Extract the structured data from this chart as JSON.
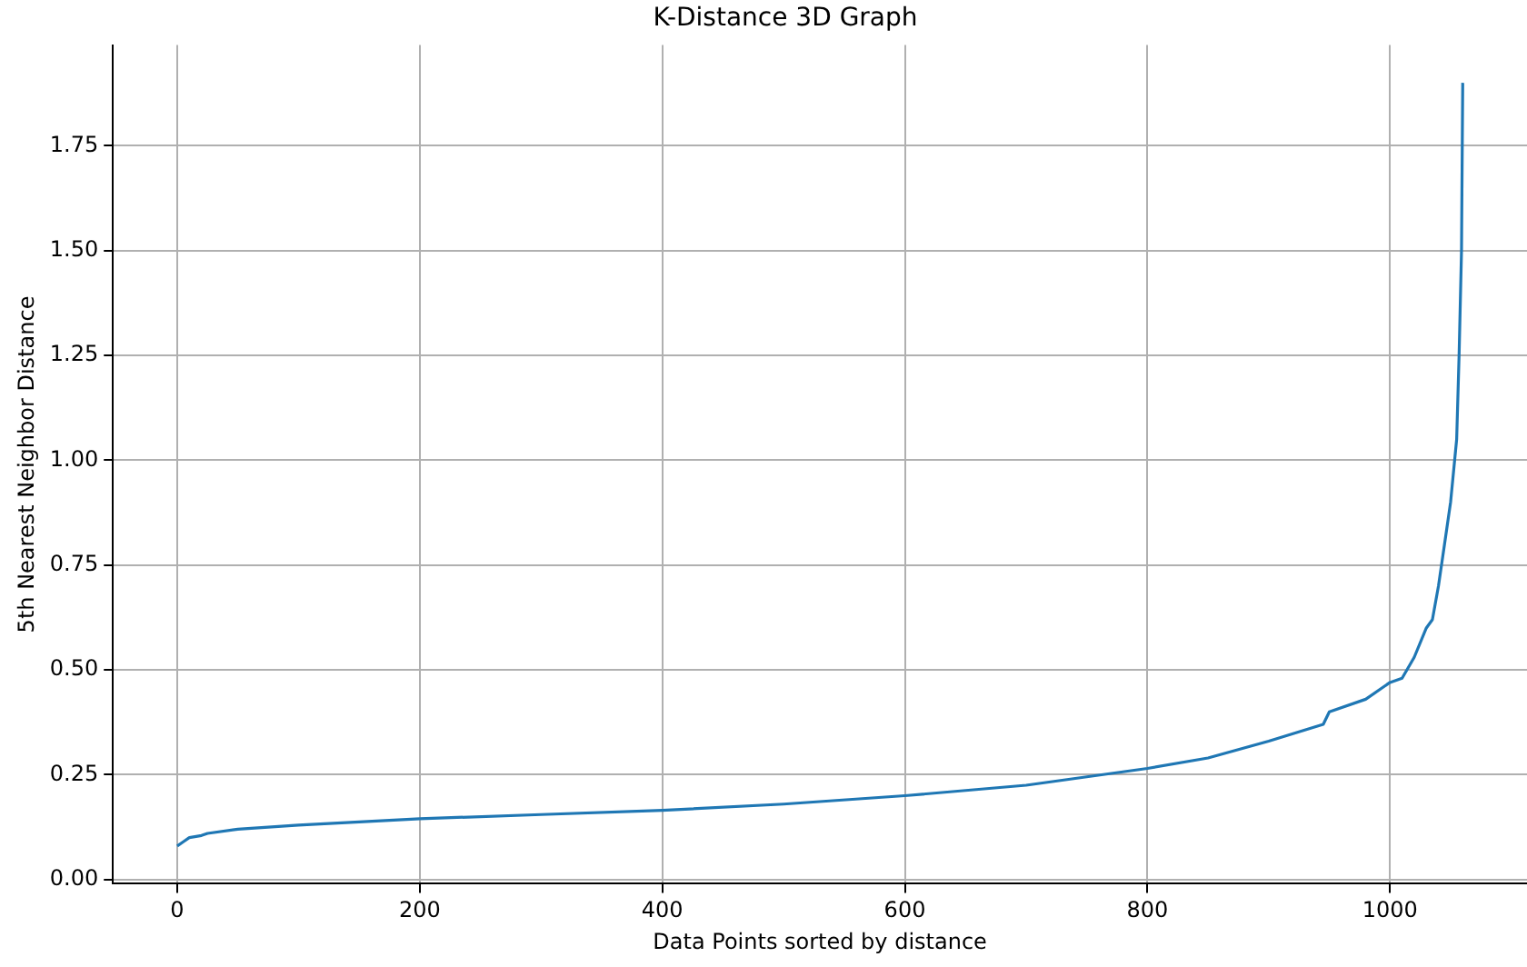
{
  "chart_data": {
    "type": "line",
    "title": "K-Distance 3D Graph",
    "xlabel": "Data Points sorted by distance",
    "ylabel": "5th Nearest Neighbor Distance",
    "x": [
      0,
      5,
      10,
      20,
      25,
      50,
      100,
      200,
      300,
      400,
      500,
      600,
      700,
      800,
      850,
      900,
      945,
      950,
      980,
      1000,
      1010,
      1020,
      1030,
      1035,
      1040,
      1045,
      1050,
      1055,
      1057,
      1059,
      1060
    ],
    "series": [
      {
        "color": "#1f77b4",
        "values": [
          0.08,
          0.09,
          0.1,
          0.105,
          0.11,
          0.12,
          0.13,
          0.145,
          0.155,
          0.165,
          0.18,
          0.2,
          0.225,
          0.265,
          0.29,
          0.33,
          0.37,
          0.4,
          0.43,
          0.47,
          0.48,
          0.53,
          0.6,
          0.62,
          0.7,
          0.8,
          0.9,
          1.05,
          1.25,
          1.5,
          1.9
        ]
      }
    ],
    "xlim": [
      -53,
      1113
    ],
    "ylim": [
      -0.01,
      1.99
    ],
    "xticks": [
      0,
      200,
      400,
      600,
      800,
      1000
    ],
    "yticks": [
      {
        "value": 0,
        "label": "0.00"
      },
      {
        "value": 0.25,
        "label": "0.25"
      },
      {
        "value": 0.5,
        "label": "0.50"
      },
      {
        "value": 0.75,
        "label": "0.75"
      },
      {
        "value": 1,
        "label": "1.00"
      },
      {
        "value": 1.25,
        "label": "1.25"
      },
      {
        "value": 1.5,
        "label": "1.50"
      },
      {
        "value": 1.75,
        "label": "1.75"
      }
    ],
    "grid": true,
    "legend": false,
    "marker": "none",
    "line_style": "solid"
  }
}
